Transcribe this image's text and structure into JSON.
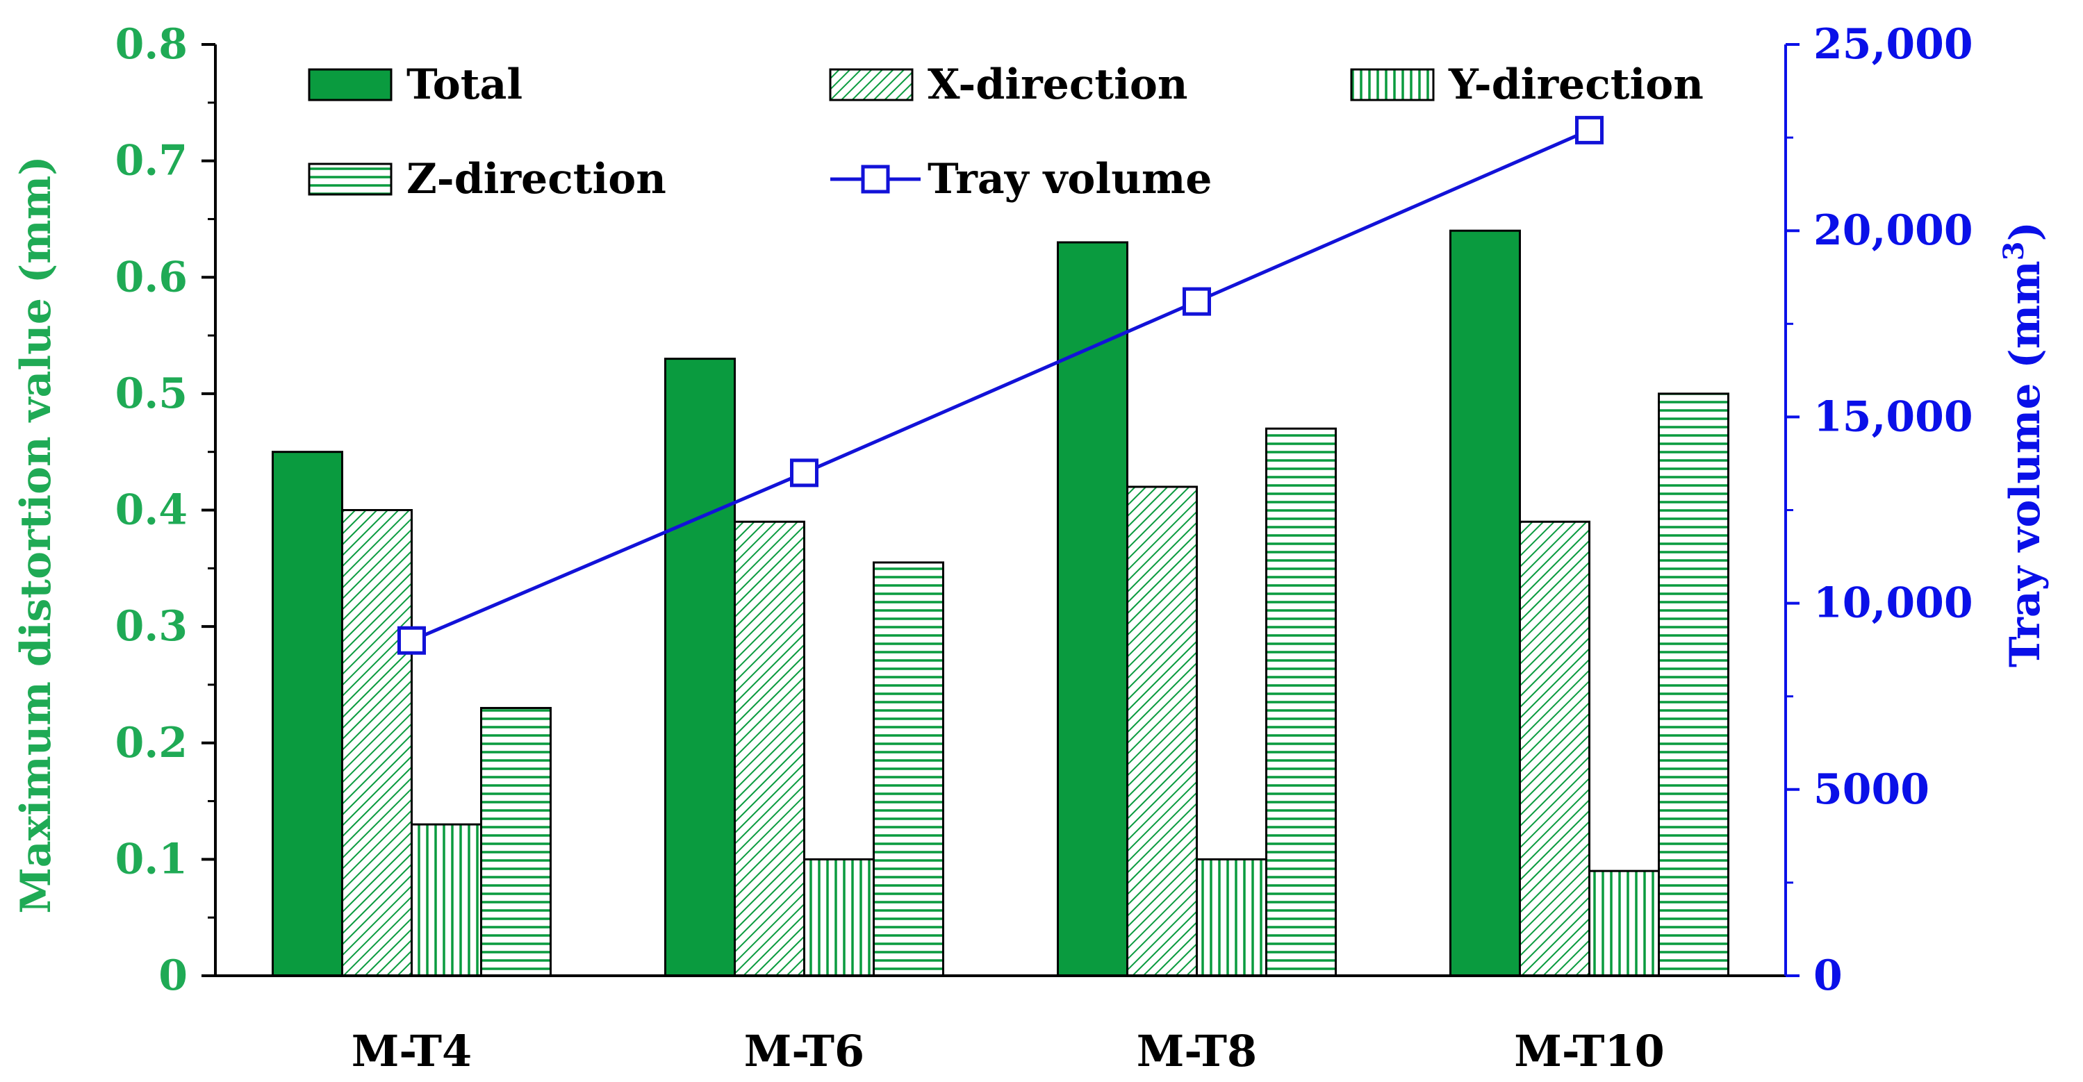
{
  "colors": {
    "bar_green": "#0a9b3f",
    "left_axis": "#1faa55",
    "right_axis": "#0a10e8",
    "line": "#1212d8",
    "black": "#000000"
  },
  "chart_data": {
    "type": "bar",
    "categories": [
      "M-T4",
      "M-T6",
      "M-T8",
      "M-T10"
    ],
    "series": [
      {
        "name": "Total",
        "values": [
          0.45,
          0.53,
          0.63,
          0.64
        ],
        "pattern": "solid"
      },
      {
        "name": "X-direction",
        "values": [
          0.4,
          0.39,
          0.42,
          0.39
        ],
        "pattern": "diagonal"
      },
      {
        "name": "Y-direction",
        "values": [
          0.13,
          0.1,
          0.1,
          0.09
        ],
        "pattern": "vertical"
      },
      {
        "name": "Z-direction",
        "values": [
          0.23,
          0.355,
          0.47,
          0.5
        ],
        "pattern": "horizontal"
      }
    ],
    "line_series": {
      "name": "Tray volume",
      "values": [
        9000,
        13500,
        18100,
        22700
      ],
      "axis": "right"
    },
    "ylabel": "Maximum distortion value (mm)",
    "y2label": "Tray volume (mm",
    "y2label_sup": "3",
    "y2label_end": ")",
    "ylim": [
      0,
      0.8
    ],
    "y2lim": [
      0,
      25000
    ],
    "yticks": [
      "0",
      "0.1",
      "0.2",
      "0.3",
      "0.4",
      "0.5",
      "0.6",
      "0.7",
      "0.8"
    ],
    "y2ticks": [
      "0",
      "5000",
      "10,000",
      "15,000",
      "20,000",
      "25,000"
    ],
    "legend": [
      {
        "label": "Total",
        "pattern": "solid"
      },
      {
        "label": "X-direction",
        "pattern": "diagonal"
      },
      {
        "label": "Y-direction",
        "pattern": "vertical"
      },
      {
        "label": "Z-direction",
        "pattern": "horizontal"
      },
      {
        "label": "Tray volume",
        "pattern": "line"
      }
    ],
    "legend_position": "top"
  }
}
